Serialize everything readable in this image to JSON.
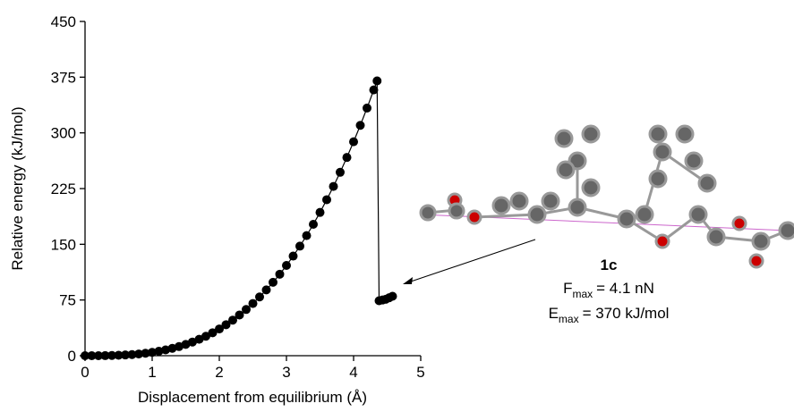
{
  "chart_data": {
    "type": "scatter",
    "x_label": "Displacement from equilibrium (Å)",
    "y_label": "Relative energy (kJ/mol)",
    "x": [
      0,
      0.1,
      0.2,
      0.3,
      0.4,
      0.5,
      0.6,
      0.7,
      0.8,
      0.9,
      1.0,
      1.1,
      1.2,
      1.3,
      1.4,
      1.5,
      1.6,
      1.7,
      1.8,
      1.9,
      2.0,
      2.1,
      2.2,
      2.3,
      2.4,
      2.5,
      2.6,
      2.7,
      2.8,
      2.9,
      3.0,
      3.1,
      3.2,
      3.3,
      3.4,
      3.5,
      3.6,
      3.7,
      3.8,
      3.9,
      4.0,
      4.1,
      4.2,
      4.3,
      4.35,
      4.38,
      4.43,
      4.48,
      4.53,
      4.58
    ],
    "values": [
      0,
      0,
      0,
      0.1,
      0.3,
      0.6,
      1,
      1.5,
      2.3,
      3.3,
      4.5,
      6.0,
      7.8,
      9.9,
      12.3,
      15.2,
      18.4,
      22.1,
      26.2,
      30.9,
      36,
      41.7,
      47.9,
      54.8,
      62.2,
      70.3,
      79.1,
      88.6,
      98.8,
      109.7,
      121.5,
      134.1,
      147.5,
      161.7,
      176.9,
      192.9,
      210.0,
      227.9,
      246.9,
      266.9,
      288,
      310.1,
      333.4,
      357.8,
      370,
      74,
      75,
      76,
      78,
      80
    ],
    "color": "#000000",
    "xlim": [
      0,
      5
    ],
    "xticks": [
      0,
      1,
      2,
      3,
      4,
      5
    ],
    "ylim": [
      0,
      450
    ],
    "yticks": [
      0,
      75,
      150,
      225,
      300,
      375,
      450
    ],
    "annotation": {
      "label": "1c",
      "lines": [
        [
          "F",
          "max",
          "= 4.1 nN"
        ],
        [
          "E",
          "max",
          "= 370 kJ/mol"
        ]
      ]
    }
  }
}
